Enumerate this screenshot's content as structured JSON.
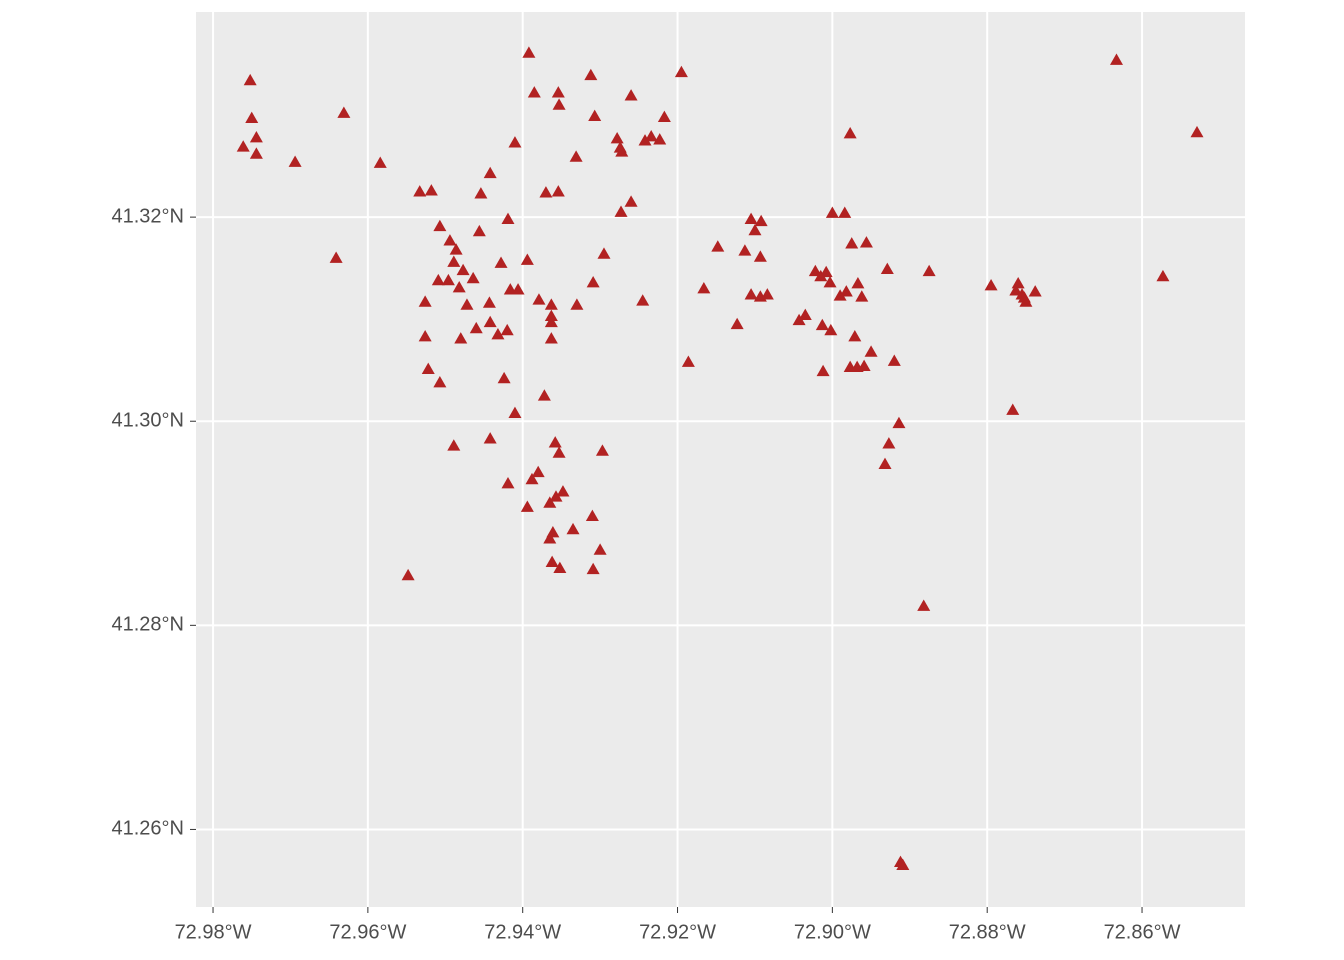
{
  "chart_data": {
    "type": "scatter",
    "color": "#b22222",
    "marker": "triangle",
    "grid": true,
    "xlim": [
      -72.9822,
      -72.8467
    ],
    "ylim": [
      41.2524,
      41.3401
    ],
    "xticks": [
      {
        "value": -72.98,
        "label": "72.98°W"
      },
      {
        "value": -72.96,
        "label": "72.96°W"
      },
      {
        "value": -72.94,
        "label": "72.94°W"
      },
      {
        "value": -72.92,
        "label": "72.92°W"
      },
      {
        "value": -72.9,
        "label": "72.90°W"
      },
      {
        "value": -72.88,
        "label": "72.88°W"
      },
      {
        "value": -72.86,
        "label": "72.86°W"
      }
    ],
    "yticks": [
      {
        "value": 41.26,
        "label": "41.26°N"
      },
      {
        "value": 41.28,
        "label": "41.28°N"
      },
      {
        "value": 41.3,
        "label": "41.30°N"
      },
      {
        "value": 41.32,
        "label": "41.32°N"
      }
    ],
    "x": [
      -72.9752,
      -72.975,
      -72.9744,
      -72.9761,
      -72.9744,
      -72.9694,
      -72.9631,
      -72.9584,
      -72.9641,
      -72.9533,
      -72.9518,
      -72.9507,
      -72.9494,
      -72.9486,
      -72.9489,
      -72.9509,
      -72.9496,
      -72.9477,
      -72.9482,
      -72.9526,
      -72.9526,
      -72.9522,
      -72.9507,
      -72.948,
      -72.9472,
      -72.946,
      -72.9464,
      -72.9456,
      -72.9454,
      -72.9442,
      -72.9443,
      -72.9442,
      -72.9432,
      -72.942,
      -72.9428,
      -72.9419,
      -72.941,
      -72.9416,
      -72.9406,
      -72.9394,
      -72.9424,
      -72.941,
      -72.9489,
      -72.9442,
      -72.9419,
      -72.9392,
      -72.9385,
      -72.937,
      -72.9354,
      -72.9354,
      -72.9353,
      -72.9331,
      -72.9312,
      -72.9307,
      -72.933,
      -72.9309,
      -72.9379,
      -72.9363,
      -72.9363,
      -72.9363,
      -72.9363,
      -72.9372,
      -72.9388,
      -72.938,
      -72.9358,
      -72.9353,
      -72.9357,
      -72.9348,
      -72.9365,
      -72.9361,
      -72.9365,
      -72.9335,
      -72.931,
      -72.93,
      -72.9297,
      -72.9362,
      -72.9352,
      -72.9309,
      -72.9394,
      -72.9548,
      -72.9295,
      -72.9273,
      -72.926,
      -72.9278,
      -72.9274,
      -72.9272,
      -72.926,
      -72.9242,
      -72.9234,
      -72.9223,
      -72.9217,
      -72.9195,
      -72.9245,
      -72.9166,
      -72.9148,
      -72.9186,
      -72.9123,
      -72.9113,
      -72.9105,
      -72.9092,
      -72.91,
      -72.9093,
      -72.9105,
      -72.9093,
      -72.9084,
      -72.9043,
      -72.9035,
      -72.9022,
      -72.9015,
      -72.9008,
      -72.9003,
      -72.9013,
      -72.9002,
      -72.9012,
      -72.9,
      -72.8984,
      -72.8977,
      -72.8975,
      -72.8956,
      -72.899,
      -72.8982,
      -72.8967,
      -72.8962,
      -72.8971,
      -72.8977,
      -72.8968,
      -72.8959,
      -72.895,
      -72.8929,
      -72.892,
      -72.8875,
      -72.8795,
      -72.8914,
      -72.8927,
      -72.8932,
      -72.8882,
      -72.8912,
      -72.8909,
      -72.8767,
      -72.876,
      -72.8763,
      -72.8755,
      -72.875,
      -72.8752,
      -72.8738,
      -72.8633,
      -72.8573,
      -72.8529
    ],
    "y": [
      41.3334,
      41.3297,
      41.3278,
      41.3269,
      41.3262,
      41.3254,
      41.3302,
      41.3253,
      41.316,
      41.3225,
      41.3226,
      41.3191,
      41.3177,
      41.3168,
      41.3156,
      41.3138,
      41.3138,
      41.3148,
      41.3131,
      41.3117,
      41.3083,
      41.3051,
      41.3038,
      41.3081,
      41.3114,
      41.3091,
      41.314,
      41.3186,
      41.3223,
      41.3243,
      41.3116,
      41.3097,
      41.3085,
      41.3089,
      41.3155,
      41.3198,
      41.3273,
      41.3129,
      41.3129,
      41.3158,
      41.3042,
      41.3008,
      41.2976,
      41.2983,
      41.2939,
      41.3361,
      41.3322,
      41.3224,
      41.3225,
      41.3322,
      41.331,
      41.3259,
      41.3339,
      41.3299,
      41.3114,
      41.3136,
      41.3119,
      41.3114,
      41.3103,
      41.3097,
      41.3081,
      41.3025,
      41.2943,
      41.295,
      41.2979,
      41.2969,
      41.2926,
      41.2931,
      41.292,
      41.2891,
      41.2885,
      41.2894,
      41.2907,
      41.2874,
      41.2971,
      41.2862,
      41.2856,
      41.2855,
      41.2916,
      41.2849,
      41.3164,
      41.3205,
      41.3215,
      41.3277,
      41.3268,
      41.3264,
      41.3319,
      41.3275,
      41.3279,
      41.3276,
      41.3298,
      41.3342,
      41.3118,
      41.313,
      41.3171,
      41.3058,
      41.3095,
      41.3167,
      41.3198,
      41.3196,
      41.3187,
      41.3161,
      41.3124,
      41.3122,
      41.3124,
      41.3099,
      41.3104,
      41.3147,
      41.3142,
      41.3146,
      41.3136,
      41.3094,
      41.3089,
      41.3049,
      41.3204,
      41.3204,
      41.3282,
      41.3174,
      41.3175,
      41.3123,
      41.3127,
      41.3135,
      41.3122,
      41.3083,
      41.3053,
      41.3053,
      41.3054,
      41.3068,
      41.3149,
      41.3059,
      41.3147,
      41.3133,
      41.2998,
      41.2978,
      41.2958,
      41.2819,
      41.2568,
      41.2565,
      41.3011,
      41.3135,
      41.3128,
      41.3124,
      41.3117,
      41.3121,
      41.3127,
      41.3354,
      41.3142,
      41.3283
    ]
  }
}
